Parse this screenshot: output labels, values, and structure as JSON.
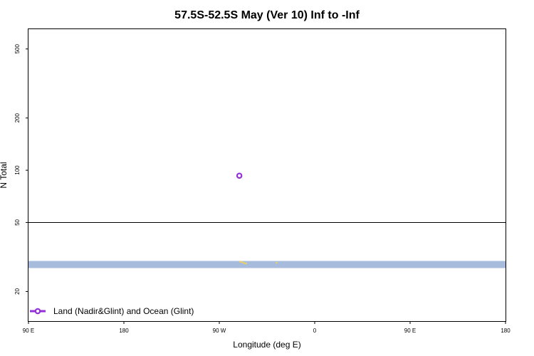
{
  "chart_data": {
    "type": "scatter",
    "title": "57.5S-52.5S May (Ver 10)   Inf to -Inf",
    "xlabel": "Longitude (deg E)",
    "ylabel": "N Total",
    "x_ticks": [
      "90 E",
      "180",
      "90 W",
      "0",
      "90 E",
      "180"
    ],
    "y_scale": "log",
    "y_ticks": [
      {
        "value": 20,
        "label": "20"
      },
      {
        "value": 50,
        "label": "50"
      },
      {
        "value": 100,
        "label": "100"
      },
      {
        "value": 200,
        "label": "200"
      },
      {
        "value": 500,
        "label": "500"
      }
    ],
    "ylim": [
      13.5,
      650
    ],
    "xlim": [
      0,
      5
    ],
    "reference_line": 50,
    "land_band": {
      "y_low": 27.3,
      "y_high": 30.0,
      "color": "#a7bcdc"
    },
    "land_features": [
      {
        "x": 2.22,
        "y": 29.7
      },
      {
        "x": 2.24,
        "y": 29.5
      },
      {
        "x": 2.26,
        "y": 29.2
      },
      {
        "x": 2.28,
        "y": 29.0
      },
      {
        "x": 2.6,
        "y": 29.3
      }
    ],
    "land_feature_color": "#f0d060",
    "series": [
      {
        "name": "Land (Nadir&Glint) and Ocean (Glint)",
        "color": "#9330d8",
        "points": [
          {
            "x": 2.21,
            "y": 93
          }
        ]
      }
    ],
    "legend_position": "bottom-left",
    "grid": false
  }
}
